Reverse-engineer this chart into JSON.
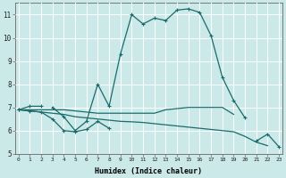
{
  "xlabel": "Humidex (Indice chaleur)",
  "background_color": "#cce9e9",
  "grid_color": "#ffffff",
  "line_color": "#1a6b6b",
  "x_values": [
    0,
    1,
    2,
    3,
    4,
    5,
    6,
    7,
    8,
    9,
    10,
    11,
    12,
    13,
    14,
    15,
    16,
    17,
    18,
    19,
    20,
    21,
    22,
    23
  ],
  "series": {
    "upper": [
      6.9,
      7.05,
      7.05,
      null,
      null,
      null,
      null,
      null,
      null,
      null,
      null,
      null,
      null,
      null,
      null,
      null,
      null,
      null,
      null,
      null,
      null,
      null,
      null,
      null
    ],
    "main": [
      null,
      null,
      null,
      7.0,
      6.6,
      6.0,
      6.4,
      8.0,
      7.05,
      9.3,
      11.0,
      10.6,
      10.85,
      10.75,
      11.2,
      11.25,
      11.1,
      10.1,
      8.3,
      7.3,
      6.55,
      null,
      null,
      null
    ],
    "flat_top": [
      6.9,
      6.9,
      6.9,
      6.9,
      6.9,
      6.85,
      6.8,
      6.75,
      6.75,
      6.75,
      6.75,
      6.75,
      6.75,
      6.9,
      6.95,
      7.0,
      7.0,
      7.0,
      7.0,
      6.7,
      null,
      null,
      null,
      null
    ],
    "mid_line": [
      6.9,
      6.85,
      6.8,
      6.75,
      6.7,
      6.6,
      6.55,
      6.5,
      6.45,
      6.4,
      6.38,
      6.35,
      6.3,
      6.25,
      6.2,
      6.15,
      6.1,
      6.05,
      6.0,
      5.95,
      5.75,
      5.5,
      5.35,
      null
    ],
    "lower_left": [
      6.9,
      6.85,
      6.8,
      6.5,
      6.0,
      5.95,
      6.05,
      6.4,
      6.1,
      null,
      null,
      null,
      null,
      null,
      null,
      null,
      null,
      null,
      null,
      null,
      null,
      null,
      null,
      null
    ],
    "lower_right": [
      null,
      null,
      null,
      null,
      null,
      null,
      null,
      null,
      null,
      null,
      null,
      null,
      null,
      null,
      null,
      null,
      null,
      null,
      null,
      null,
      null,
      5.55,
      5.85,
      5.3
    ]
  },
  "ylim": [
    5.0,
    11.5
  ],
  "xlim": [
    -0.3,
    23.3
  ],
  "yticks": [
    5,
    6,
    7,
    8,
    9,
    10,
    11
  ],
  "xticks": [
    0,
    1,
    2,
    3,
    4,
    5,
    6,
    7,
    8,
    9,
    10,
    11,
    12,
    13,
    14,
    15,
    16,
    17,
    18,
    19,
    20,
    21,
    22,
    23
  ]
}
